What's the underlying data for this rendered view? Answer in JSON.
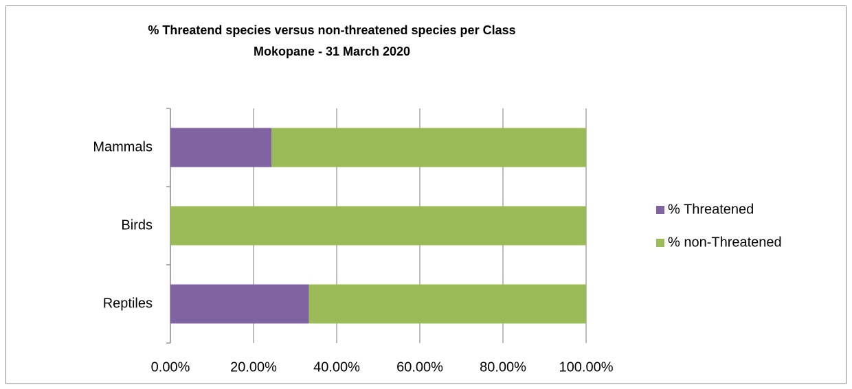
{
  "chart_data": {
    "type": "stacked_bar_horizontal",
    "title": "% Threatend species versus non-threatened species per Class",
    "subtitle": "Mokopane - 31 March 2020",
    "categories": [
      "Mammals",
      "Birds",
      "Reptiles"
    ],
    "series": [
      {
        "name": "% Threatened",
        "color": "#8064a2",
        "values": [
          24.3,
          0,
          33.3
        ]
      },
      {
        "name": "% non-Threatened",
        "color": "#9bbb59",
        "values": [
          75.7,
          100,
          66.7
        ]
      }
    ],
    "xlim": [
      0,
      100
    ],
    "xticks": [
      {
        "value": 0,
        "label": "0.00%"
      },
      {
        "value": 20,
        "label": "20.00%"
      },
      {
        "value": 40,
        "label": "40.00%"
      },
      {
        "value": 60,
        "label": "60.00%"
      },
      {
        "value": 80,
        "label": "80.00%"
      },
      {
        "value": 100,
        "label": "100.00%"
      }
    ],
    "grid": true,
    "legend": "right"
  }
}
